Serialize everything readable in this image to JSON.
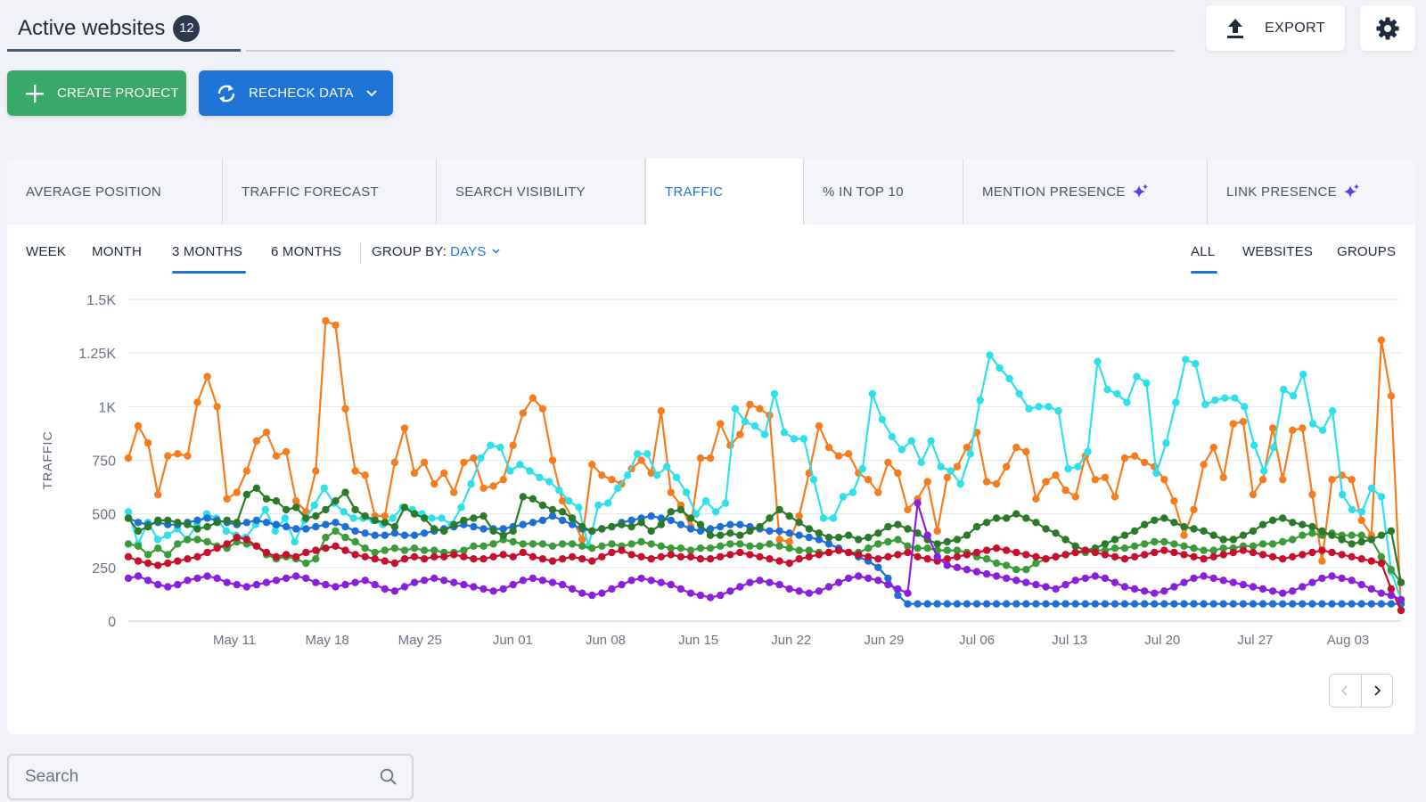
{
  "header": {
    "title": "Active websites",
    "count": "12",
    "export_label": "EXPORT"
  },
  "actions": {
    "create_label": "CREATE PROJECT",
    "recheck_label": "RECHECK DATA"
  },
  "metric_tabs": [
    {
      "label": "AVERAGE POSITION"
    },
    {
      "label": "TRAFFIC FORECAST"
    },
    {
      "label": "SEARCH VISIBILITY"
    },
    {
      "label": "TRAFFIC",
      "active": true
    },
    {
      "label": "% IN TOP 10"
    },
    {
      "label": "MENTION PRESENCE",
      "ai": true
    },
    {
      "label": "LINK PRESENCE",
      "ai": true
    }
  ],
  "periods": [
    "WEEK",
    "MONTH",
    "3 MONTHS",
    "6 MONTHS"
  ],
  "active_period": "3 MONTHS",
  "group_by": {
    "label": "GROUP BY:",
    "value": "DAYS"
  },
  "view_modes": [
    "ALL",
    "WEBSITES",
    "GROUPS"
  ],
  "active_view": "ALL",
  "search": {
    "placeholder": "Search",
    "value": ""
  },
  "colors": {
    "accent": "#1f74d8",
    "green": "#3aa868"
  },
  "chart_data": {
    "type": "line",
    "ylabel": "TRAFFIC",
    "ylim": [
      0,
      1500
    ],
    "yticks": [
      0,
      250,
      500,
      750,
      1000,
      1250,
      1500
    ],
    "yticklabels": [
      "0",
      "250",
      "500",
      "750",
      "1K",
      "1.25K",
      "1.5K"
    ],
    "x_start": "2024-05-03",
    "x_end": "2024-08-07",
    "xticklabels": [
      "May 11",
      "May 18",
      "May 25",
      "Jun 01",
      "Jun 08",
      "Jun 15",
      "Jun 22",
      "Jun 29",
      "Jul 06",
      "Jul 13",
      "Jul 20",
      "Jul 27",
      "Aug 03"
    ],
    "series": [
      {
        "color": "#f57c1f",
        "values": [
          760,
          910,
          830,
          590,
          770,
          780,
          770,
          1020,
          1140,
          1000,
          570,
          600,
          700,
          840,
          880,
          770,
          790,
          560,
          510,
          700,
          1400,
          1380,
          990,
          700,
          680,
          490,
          490,
          740,
          900,
          690,
          740,
          640,
          690,
          600,
          740,
          760,
          620,
          630,
          660,
          820,
          970,
          1040,
          990,
          750,
          560,
          480,
          380,
          730,
          680,
          660,
          640,
          710,
          750,
          690,
          980,
          600,
          540,
          440,
          760,
          760,
          920,
          820,
          870,
          1010,
          990,
          960,
          380,
          370,
          490,
          690,
          910,
          810,
          770,
          780,
          690,
          660,
          600,
          740,
          690,
          520,
          570,
          650,
          420,
          670,
          720,
          810,
          880,
          650,
          640,
          720,
          810,
          790,
          570,
          650,
          680,
          610,
          580,
          770,
          660,
          670,
          580,
          760,
          770,
          740,
          720,
          660,
          560,
          400,
          520,
          730,
          810,
          670,
          920,
          930,
          590,
          660,
          900,
          660,
          890,
          900,
          590,
          280,
          660,
          680,
          660,
          470,
          400,
          1310,
          1050,
          50
        ]
      },
      {
        "color": "#2ee0e8",
        "values": [
          510,
          360,
          460,
          380,
          400,
          430,
          380,
          450,
          500,
          480,
          420,
          400,
          390,
          450,
          520,
          420,
          480,
          370,
          470,
          540,
          620,
          550,
          510,
          480,
          480,
          470,
          450,
          480,
          530,
          520,
          500,
          480,
          480,
          450,
          530,
          640,
          760,
          820,
          810,
          700,
          730,
          700,
          670,
          650,
          610,
          560,
          530,
          350,
          540,
          550,
          620,
          680,
          780,
          780,
          680,
          720,
          670,
          600,
          500,
          560,
          510,
          550,
          990,
          930,
          910,
          870,
          1060,
          880,
          850,
          850,
          660,
          480,
          480,
          580,
          600,
          710,
          1060,
          940,
          860,
          800,
          840,
          740,
          840,
          720,
          700,
          640,
          780,
          1030,
          1240,
          1180,
          1130,
          1060,
          990,
          1000,
          1000,
          980,
          710,
          720,
          790,
          1210,
          1080,
          1060,
          1020,
          1140,
          1110,
          690,
          830,
          1020,
          1220,
          1200,
          1010,
          1030,
          1040,
          1040,
          1000,
          820,
          700,
          810,
          1080,
          1050,
          1150,
          920,
          890,
          980,
          590,
          520,
          510,
          620,
          580,
          230,
          100
        ]
      },
      {
        "color": "#3a9b3a",
        "values": [
          360,
          350,
          310,
          340,
          310,
          360,
          380,
          380,
          370,
          350,
          340,
          370,
          360,
          350,
          310,
          290,
          300,
          290,
          270,
          290,
          390,
          420,
          390,
          370,
          340,
          320,
          330,
          340,
          330,
          340,
          330,
          330,
          320,
          320,
          330,
          350,
          350,
          360,
          380,
          370,
          360,
          360,
          360,
          350,
          360,
          360,
          350,
          340,
          350,
          360,
          350,
          360,
          370,
          360,
          350,
          340,
          340,
          330,
          340,
          340,
          350,
          360,
          360,
          350,
          350,
          360,
          350,
          340,
          330,
          330,
          320,
          320,
          330,
          320,
          320,
          340,
          360,
          370,
          380,
          350,
          340,
          340,
          330,
          330,
          330,
          320,
          300,
          290,
          270,
          260,
          240,
          240,
          270,
          290,
          300,
          310,
          320,
          320,
          330,
          330,
          340,
          340,
          350,
          360,
          370,
          370,
          360,
          350,
          340,
          330,
          330,
          340,
          340,
          350,
          350,
          360,
          360,
          370,
          380,
          400,
          410,
          400,
          410,
          400,
          400,
          400,
          380,
          300,
          240,
          180
        ]
      },
      {
        "color": "#1e6ed8",
        "values": [
          480,
          460,
          450,
          460,
          450,
          450,
          460,
          470,
          480,
          470,
          460,
          450,
          460,
          470,
          460,
          450,
          440,
          430,
          430,
          440,
          450,
          460,
          440,
          420,
          410,
          400,
          400,
          410,
          400,
          400,
          410,
          420,
          430,
          440,
          450,
          440,
          430,
          430,
          430,
          440,
          450,
          460,
          470,
          490,
          470,
          450,
          430,
          420,
          430,
          440,
          460,
          470,
          480,
          490,
          480,
          470,
          450,
          430,
          420,
          430,
          440,
          450,
          450,
          440,
          430,
          420,
          420,
          410,
          400,
          390,
          380,
          360,
          340,
          320,
          300,
          280,
          250,
          200,
          120,
          80,
          80,
          80,
          80,
          80,
          80,
          80,
          80,
          80,
          80,
          80,
          80,
          80,
          80,
          80,
          80,
          80,
          80,
          80,
          80,
          80,
          80,
          80,
          80,
          80,
          80,
          80,
          80,
          80,
          80,
          80,
          80,
          80,
          80,
          80,
          80,
          80,
          80,
          80,
          80,
          80,
          80,
          80,
          80,
          80,
          80,
          80,
          80,
          80,
          80,
          80
        ]
      },
      {
        "color": "#2a7a2a",
        "values": [
          480,
          420,
          440,
          470,
          470,
          460,
          450,
          430,
          440,
          460,
          470,
          460,
          590,
          620,
          570,
          560,
          520,
          530,
          480,
          490,
          520,
          560,
          600,
          520,
          490,
          470,
          460,
          440,
          530,
          500,
          480,
          430,
          420,
          450,
          470,
          480,
          490,
          420,
          400,
          420,
          580,
          570,
          540,
          520,
          510,
          480,
          440,
          420,
          430,
          440,
          450,
          440,
          460,
          420,
          450,
          510,
          520,
          480,
          450,
          400,
          400,
          410,
          400,
          420,
          440,
          480,
          520,
          490,
          460,
          430,
          410,
          390,
          390,
          400,
          380,
          390,
          410,
          440,
          450,
          430,
          410,
          380,
          360,
          370,
          380,
          400,
          440,
          460,
          480,
          480,
          500,
          480,
          460,
          430,
          410,
          380,
          350,
          330,
          340,
          360,
          380,
          400,
          420,
          450,
          470,
          480,
          460,
          440,
          430,
          420,
          400,
          380,
          380,
          400,
          420,
          450,
          470,
          480,
          460,
          450,
          440,
          420,
          400,
          380,
          360,
          370,
          380,
          400,
          420,
          180
        ]
      },
      {
        "color": "#c8102e",
        "values": [
          300,
          280,
          270,
          260,
          270,
          280,
          290,
          300,
          320,
          340,
          360,
          390,
          380,
          350,
          320,
          300,
          310,
          300,
          320,
          330,
          340,
          350,
          330,
          310,
          300,
          290,
          280,
          270,
          290,
          300,
          290,
          300,
          300,
          310,
          300,
          290,
          290,
          300,
          310,
          300,
          320,
          300,
          290,
          280,
          290,
          300,
          290,
          280,
          300,
          320,
          330,
          310,
          300,
          290,
          300,
          310,
          300,
          300,
          290,
          290,
          300,
          310,
          320,
          310,
          300,
          290,
          280,
          270,
          290,
          300,
          310,
          320,
          330,
          320,
          310,
          300,
          290,
          300,
          310,
          320,
          300,
          290,
          280,
          290,
          300,
          310,
          320,
          330,
          340,
          330,
          320,
          310,
          300,
          290,
          300,
          310,
          320,
          330,
          320,
          310,
          300,
          290,
          300,
          310,
          320,
          330,
          320,
          310,
          300,
          290,
          300,
          310,
          320,
          330,
          320,
          310,
          300,
          290,
          300,
          310,
          320,
          330,
          320,
          310,
          300,
          290,
          280,
          270,
          150,
          50
        ]
      },
      {
        "color": "#8b1fe0",
        "values": [
          200,
          210,
          190,
          170,
          160,
          170,
          190,
          200,
          210,
          200,
          180,
          170,
          160,
          170,
          180,
          190,
          200,
          210,
          200,
          180,
          170,
          160,
          170,
          180,
          190,
          170,
          150,
          140,
          160,
          180,
          190,
          200,
          190,
          180,
          170,
          160,
          150,
          140,
          150,
          170,
          190,
          200,
          190,
          180,
          170,
          150,
          130,
          120,
          130,
          150,
          170,
          190,
          200,
          190,
          180,
          170,
          150,
          130,
          120,
          110,
          120,
          140,
          160,
          180,
          190,
          180,
          170,
          150,
          140,
          130,
          140,
          160,
          180,
          200,
          210,
          200,
          190,
          170,
          150,
          130,
          550,
          400,
          300,
          260,
          250,
          240,
          230,
          220,
          210,
          200,
          190,
          180,
          170,
          160,
          150,
          170,
          190,
          200,
          210,
          200,
          180,
          160,
          150,
          140,
          130,
          140,
          160,
          180,
          200,
          210,
          200,
          190,
          180,
          170,
          160,
          150,
          140,
          130,
          140,
          160,
          180,
          200,
          210,
          200,
          190,
          170,
          150,
          130,
          120,
          100
        ]
      }
    ]
  }
}
